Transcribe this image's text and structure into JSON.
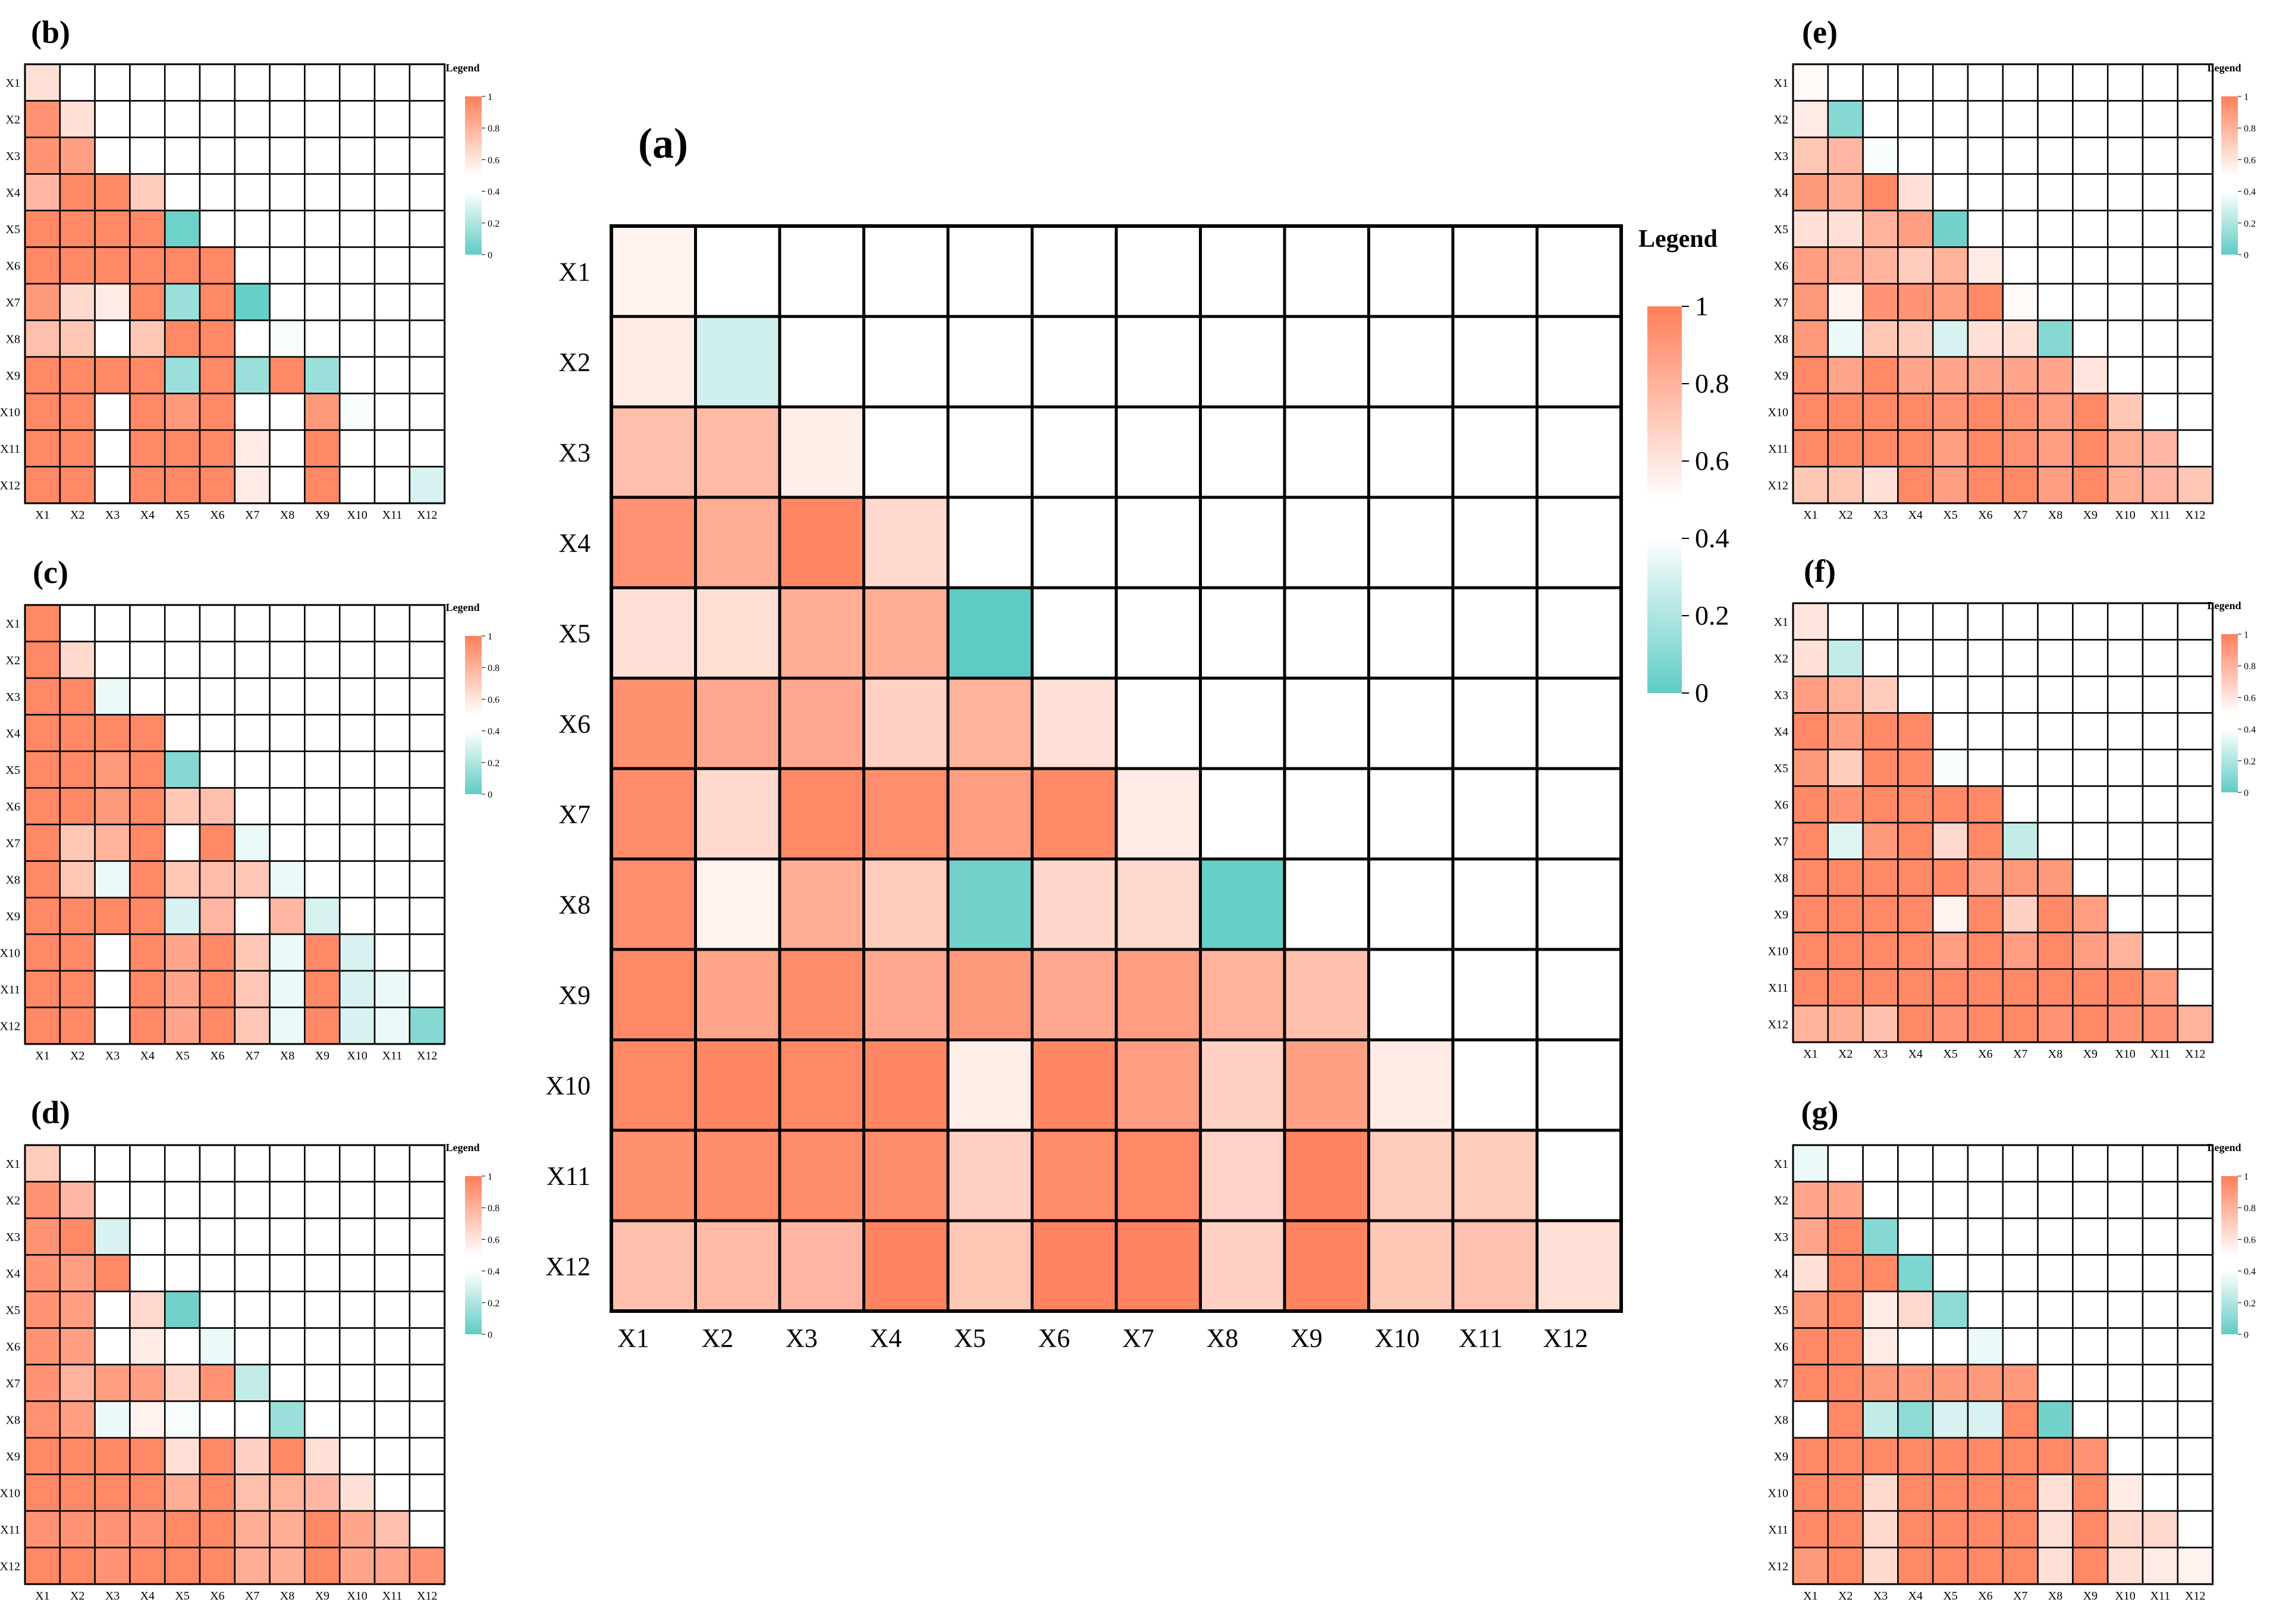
{
  "figure": {
    "legend_title": "Legend",
    "colors": {
      "low": "#5ECCC4",
      "mid": "#FFFFFF",
      "high": "#FF7F5A",
      "grid": "#000000"
    }
  },
  "chart_data": [
    {
      "id": "a",
      "type": "heatmap",
      "panel_label": "(a)",
      "legend_title": "Legend",
      "legend_ticks": [
        "0",
        "0.2",
        "0.4",
        "0.6",
        "0.8",
        "1"
      ],
      "value_range": [
        0,
        1
      ],
      "labels": [
        "X1",
        "X2",
        "X3",
        "X4",
        "X5",
        "X6",
        "X7",
        "X8",
        "X9",
        "X10",
        "X11",
        "X12"
      ],
      "values": [
        [
          0.55
        ],
        [
          0.58,
          0.28
        ],
        [
          0.75,
          0.77,
          0.57
        ],
        [
          0.92,
          0.82,
          0.97,
          0.65
        ],
        [
          0.62,
          0.63,
          0.82,
          0.82,
          0.0
        ],
        [
          0.93,
          0.84,
          0.84,
          0.68,
          0.8,
          0.62
        ],
        [
          0.95,
          0.65,
          0.96,
          0.94,
          0.88,
          0.96,
          0.58
        ],
        [
          0.94,
          0.55,
          0.82,
          0.7,
          0.05,
          0.66,
          0.65,
          0.02
        ],
        [
          0.96,
          0.85,
          0.95,
          0.84,
          0.9,
          0.84,
          0.88,
          0.8,
          0.75
        ],
        [
          0.96,
          0.97,
          0.96,
          0.97,
          0.57,
          0.97,
          0.88,
          0.68,
          0.87,
          0.58
        ],
        [
          0.93,
          0.95,
          0.95,
          0.95,
          0.68,
          0.95,
          0.96,
          0.67,
          0.98,
          0.7,
          0.7
        ],
        [
          0.75,
          0.77,
          0.78,
          0.98,
          0.72,
          0.98,
          0.98,
          0.68,
          0.98,
          0.72,
          0.74,
          0.62
        ]
      ]
    },
    {
      "id": "b",
      "type": "heatmap",
      "panel_label": "(b)",
      "legend_title": "Legend",
      "legend_ticks": [
        "0",
        "0.2",
        "0.4",
        "0.6",
        "0.8",
        "1"
      ],
      "value_range": [
        0,
        1
      ],
      "labels": [
        "X1",
        "X2",
        "X3",
        "X4",
        "X5",
        "X6",
        "X7",
        "X8",
        "X9",
        "X10",
        "X11",
        "X12"
      ],
      "values": [
        [
          0.62
        ],
        [
          0.92,
          0.62
        ],
        [
          0.92,
          0.87,
          0.4
        ],
        [
          0.78,
          0.96,
          0.96,
          0.7
        ],
        [
          0.96,
          0.96,
          0.96,
          0.96,
          0.04
        ],
        [
          0.96,
          0.96,
          0.96,
          0.96,
          0.96,
          0.96
        ],
        [
          0.9,
          0.65,
          0.58,
          0.96,
          0.15,
          0.96,
          0.02
        ],
        [
          0.75,
          0.72,
          0.5,
          0.72,
          0.96,
          0.96,
          0.48,
          0.38
        ],
        [
          0.96,
          0.96,
          0.96,
          0.96,
          0.15,
          0.96,
          0.15,
          0.96,
          0.15
        ],
        [
          0.96,
          0.96,
          0.45,
          0.96,
          0.9,
          0.96,
          0.45,
          0.45,
          0.9,
          0.38
        ],
        [
          0.96,
          0.96,
          0.4,
          0.96,
          0.96,
          0.96,
          0.58,
          0.42,
          0.96,
          0.45,
          0.45
        ],
        [
          0.96,
          0.96,
          0.4,
          0.96,
          0.96,
          0.96,
          0.58,
          0.42,
          0.96,
          0.45,
          0.45,
          0.3
        ]
      ]
    },
    {
      "id": "c",
      "type": "heatmap",
      "panel_label": "(c)",
      "legend_title": "Legend",
      "legend_ticks": [
        "0",
        "0.2",
        "0.4",
        "0.6",
        "0.8",
        "1"
      ],
      "value_range": [
        0,
        1
      ],
      "labels": [
        "X1",
        "X2",
        "X3",
        "X4",
        "X5",
        "X6",
        "X7",
        "X8",
        "X9",
        "X10",
        "X11",
        "X12"
      ],
      "values": [
        [
          0.96
        ],
        [
          0.96,
          0.65
        ],
        [
          0.96,
          0.96,
          0.35
        ],
        [
          0.96,
          0.96,
          0.96,
          0.96
        ],
        [
          0.96,
          0.96,
          0.9,
          0.96,
          0.1
        ],
        [
          0.96,
          0.96,
          0.9,
          0.96,
          0.72,
          0.75
        ],
        [
          0.96,
          0.72,
          0.8,
          0.96,
          0.45,
          0.96,
          0.35
        ],
        [
          0.96,
          0.72,
          0.35,
          0.96,
          0.72,
          0.76,
          0.72,
          0.35
        ],
        [
          0.96,
          0.96,
          0.96,
          0.96,
          0.3,
          0.78,
          0.5,
          0.78,
          0.3
        ],
        [
          0.96,
          0.96,
          0.45,
          0.96,
          0.85,
          0.96,
          0.72,
          0.35,
          0.96,
          0.3
        ],
        [
          0.96,
          0.96,
          0.45,
          0.96,
          0.85,
          0.96,
          0.72,
          0.35,
          0.96,
          0.3,
          0.35
        ],
        [
          0.96,
          0.96,
          0.45,
          0.96,
          0.85,
          0.96,
          0.72,
          0.35,
          0.96,
          0.3,
          0.35,
          0.1
        ]
      ]
    },
    {
      "id": "d",
      "type": "heatmap",
      "panel_label": "(d)",
      "legend_title": "Legend",
      "legend_ticks": [
        "0",
        "0.2",
        "0.4",
        "0.6",
        "0.8",
        "1"
      ],
      "value_range": [
        0,
        1
      ],
      "labels": [
        "X1",
        "X2",
        "X3",
        "X4",
        "X5",
        "X6",
        "X7",
        "X8",
        "X9",
        "X10",
        "X11",
        "X12"
      ],
      "values": [
        [
          0.7
        ],
        [
          0.92,
          0.78
        ],
        [
          0.92,
          0.96,
          0.3
        ],
        [
          0.92,
          0.88,
          0.96,
          0.42
        ],
        [
          0.92,
          0.88,
          0.5,
          0.65,
          0.05
        ],
        [
          0.92,
          0.88,
          0.5,
          0.58,
          0.4,
          0.35
        ],
        [
          0.92,
          0.8,
          0.88,
          0.88,
          0.65,
          0.92,
          0.25
        ],
        [
          0.92,
          0.88,
          0.35,
          0.55,
          0.38,
          0.42,
          0.48,
          0.15
        ],
        [
          0.96,
          0.96,
          0.96,
          0.96,
          0.62,
          0.96,
          0.68,
          0.96,
          0.62
        ],
        [
          0.96,
          0.96,
          0.96,
          0.96,
          0.82,
          0.96,
          0.75,
          0.8,
          0.78,
          0.62
        ],
        [
          0.92,
          0.92,
          0.92,
          0.92,
          0.96,
          0.96,
          0.82,
          0.82,
          0.96,
          0.85,
          0.75
        ],
        [
          0.96,
          0.96,
          0.92,
          0.96,
          0.96,
          0.96,
          0.82,
          0.82,
          0.96,
          0.85,
          0.85,
          0.92
        ]
      ]
    },
    {
      "id": "e",
      "type": "heatmap",
      "panel_label": "(e)",
      "legend_title": "Legend",
      "legend_ticks": [
        "0",
        "0.2",
        "0.4",
        "0.6",
        "0.8",
        "1"
      ],
      "value_range": [
        0,
        1
      ],
      "labels": [
        "X1",
        "X2",
        "X3",
        "X4",
        "X5",
        "X6",
        "X7",
        "X8",
        "X9",
        "X10",
        "X11",
        "X12"
      ],
      "values": [
        [
          0.52
        ],
        [
          0.58,
          0.1
        ],
        [
          0.72,
          0.78,
          0.38
        ],
        [
          0.9,
          0.82,
          0.96,
          0.62
        ],
        [
          0.62,
          0.62,
          0.8,
          0.88,
          0.05
        ],
        [
          0.88,
          0.82,
          0.8,
          0.7,
          0.8,
          0.58
        ],
        [
          0.9,
          0.55,
          0.92,
          0.92,
          0.88,
          0.96,
          0.52
        ],
        [
          0.9,
          0.35,
          0.72,
          0.7,
          0.3,
          0.62,
          0.62,
          0.1
        ],
        [
          0.96,
          0.85,
          0.96,
          0.85,
          0.85,
          0.85,
          0.85,
          0.85,
          0.6
        ],
        [
          0.96,
          0.96,
          0.96,
          0.96,
          0.92,
          0.96,
          0.92,
          0.88,
          0.96,
          0.72
        ],
        [
          0.96,
          0.96,
          0.96,
          0.96,
          0.88,
          0.96,
          0.92,
          0.88,
          0.96,
          0.82,
          0.78
        ],
        [
          0.72,
          0.72,
          0.62,
          0.96,
          0.88,
          0.96,
          0.96,
          0.88,
          0.96,
          0.82,
          0.78,
          0.72
        ]
      ]
    },
    {
      "id": "f",
      "type": "heatmap",
      "panel_label": "(f)",
      "legend_title": "Legend",
      "legend_ticks": [
        "0",
        "0.2",
        "0.4",
        "0.6",
        "0.8",
        "1"
      ],
      "value_range": [
        0,
        1
      ],
      "labels": [
        "X1",
        "X2",
        "X3",
        "X4",
        "X5",
        "X6",
        "X7",
        "X8",
        "X9",
        "X10",
        "X11",
        "X12"
      ],
      "values": [
        [
          0.6
        ],
        [
          0.62,
          0.25
        ],
        [
          0.88,
          0.8,
          0.7
        ],
        [
          0.96,
          0.88,
          0.96,
          0.96
        ],
        [
          0.9,
          0.7,
          0.96,
          0.96,
          0.38
        ],
        [
          0.96,
          0.92,
          0.96,
          0.96,
          0.96,
          0.96
        ],
        [
          0.96,
          0.32,
          0.9,
          0.96,
          0.65,
          0.96,
          0.25
        ],
        [
          0.96,
          0.96,
          0.96,
          0.96,
          0.96,
          0.9,
          0.9,
          0.9
        ],
        [
          0.96,
          0.96,
          0.96,
          0.96,
          0.55,
          0.96,
          0.68,
          0.96,
          0.88
        ],
        [
          0.96,
          0.96,
          0.96,
          0.96,
          0.88,
          0.96,
          0.88,
          0.96,
          0.88,
          0.8
        ],
        [
          0.96,
          0.96,
          0.96,
          0.96,
          0.96,
          0.96,
          0.96,
          0.96,
          0.96,
          0.96,
          0.88
        ],
        [
          0.8,
          0.82,
          0.75,
          0.96,
          0.92,
          0.96,
          0.96,
          0.92,
          0.96,
          0.92,
          0.92,
          0.8
        ]
      ]
    },
    {
      "id": "g",
      "type": "heatmap",
      "panel_label": "(g)",
      "legend_title": "Legend",
      "legend_ticks": [
        "0",
        "0.2",
        "0.4",
        "0.6",
        "0.8",
        "1"
      ],
      "value_range": [
        0,
        1
      ],
      "labels": [
        "X1",
        "X2",
        "X3",
        "X4",
        "X5",
        "X6",
        "X7",
        "X8",
        "X9",
        "X10",
        "X11",
        "X12"
      ],
      "values": [
        [
          0.35
        ],
        [
          0.85,
          0.85
        ],
        [
          0.85,
          0.96,
          0.1
        ],
        [
          0.62,
          0.96,
          0.96,
          0.08
        ],
        [
          0.9,
          0.96,
          0.58,
          0.65,
          0.12
        ],
        [
          0.96,
          0.96,
          0.58,
          0.42,
          0.42,
          0.35
        ],
        [
          0.96,
          0.96,
          0.9,
          0.9,
          0.9,
          0.9,
          0.9
        ],
        [
          0.48,
          0.96,
          0.25,
          0.12,
          0.3,
          0.3,
          0.96,
          0.05
        ],
        [
          0.96,
          0.96,
          0.96,
          0.96,
          0.96,
          0.96,
          0.96,
          0.96,
          0.92
        ],
        [
          0.96,
          0.96,
          0.65,
          0.96,
          0.96,
          0.96,
          0.96,
          0.62,
          0.96,
          0.58
        ],
        [
          0.96,
          0.96,
          0.65,
          0.96,
          0.96,
          0.96,
          0.96,
          0.62,
          0.96,
          0.65,
          0.65
        ],
        [
          0.9,
          0.96,
          0.65,
          0.96,
          0.96,
          0.96,
          0.96,
          0.62,
          0.96,
          0.62,
          0.58,
          0.55
        ]
      ]
    }
  ]
}
